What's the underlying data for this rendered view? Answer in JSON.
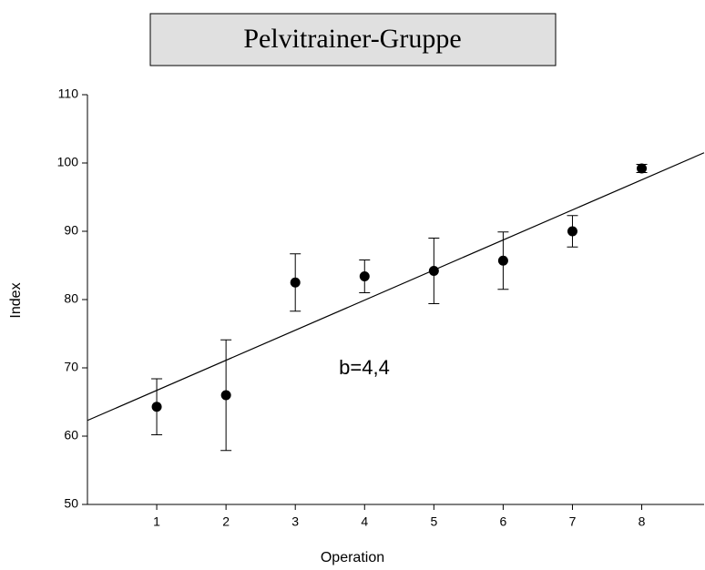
{
  "chart_data": {
    "type": "scatter",
    "title": "Pelvitrainer-Gruppe",
    "xlabel": "Operation",
    "ylabel": "Index",
    "annotation": "b=4,4",
    "x": [
      1,
      2,
      3,
      4,
      5,
      6,
      7,
      8
    ],
    "values": [
      64.3,
      66.0,
      82.5,
      83.4,
      84.2,
      85.7,
      90.0,
      99.2
    ],
    "errors": [
      4.1,
      8.1,
      4.2,
      2.4,
      4.8,
      4.2,
      2.3,
      0.6
    ],
    "color": "#000000",
    "fit_line": {
      "x": [
        0,
        8.9
      ],
      "y": [
        62.3,
        101.5
      ]
    },
    "xlim": [
      0,
      8.9
    ],
    "ylim": [
      50,
      110
    ],
    "xticks": [
      1,
      2,
      3,
      4,
      5,
      6,
      7,
      8
    ],
    "yticks": [
      50,
      60,
      70,
      80,
      90,
      100,
      110
    ]
  }
}
